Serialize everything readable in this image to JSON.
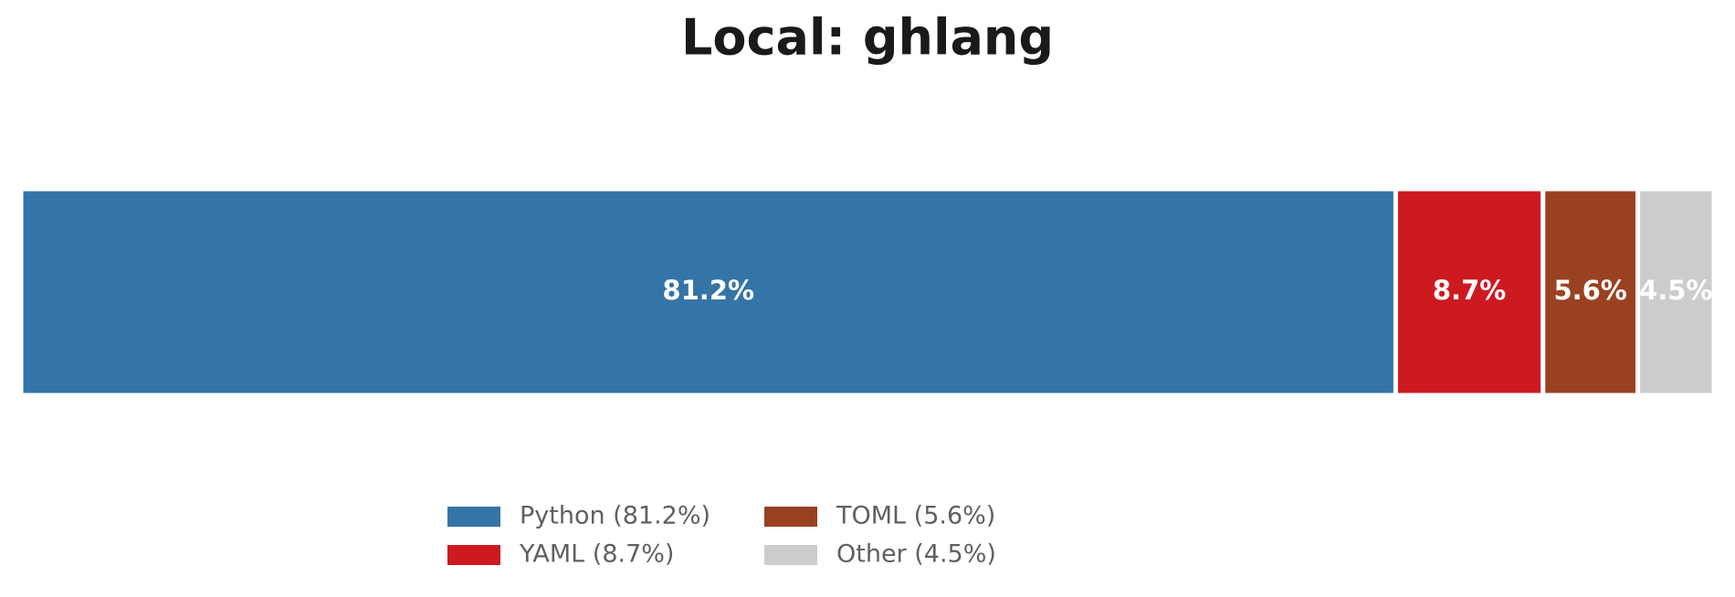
{
  "chart_data": {
    "type": "stacked-bar",
    "orientation": "horizontal",
    "title": "Local: ghlang",
    "xlim": [
      0,
      100
    ],
    "series": [
      {
        "name": "Python (81.2%)",
        "color": "#3574a6",
        "values": [
          81.2
        ],
        "value_labels": [
          "81.2%"
        ]
      },
      {
        "name": "YAML (8.7%)",
        "color": "#cc1a20",
        "values": [
          8.7
        ],
        "value_labels": [
          "8.7%"
        ]
      },
      {
        "name": "TOML (5.6%)",
        "color": "#9a4122",
        "values": [
          5.6
        ],
        "value_labels": [
          "5.6%"
        ]
      },
      {
        "name": "Other (4.5%)",
        "color": "#cccccc",
        "values": [
          4.5
        ],
        "value_labels": [
          "4.5%"
        ]
      }
    ],
    "legend": "bottom"
  }
}
